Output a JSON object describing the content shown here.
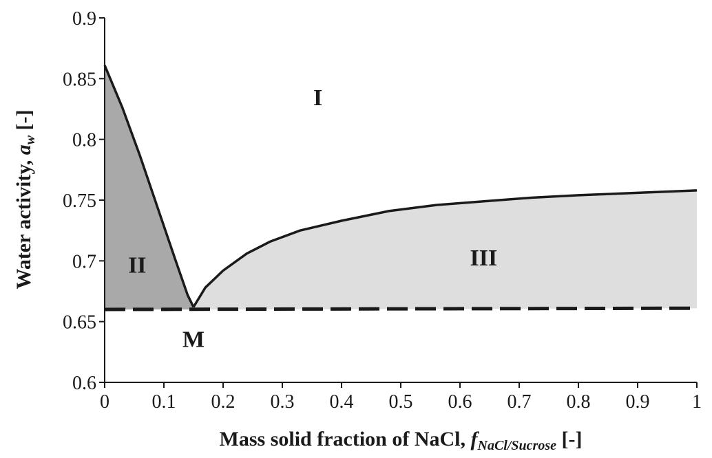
{
  "chart_data": {
    "type": "area",
    "xlabel": {
      "main": "Mass solid fraction of NaCl, ",
      "sym": "f",
      "sub": "NaCl/Sucrose",
      "unit": " [-]"
    },
    "ylabel": {
      "main": "Water activity, ",
      "sym": "a",
      "sub": "w",
      "unit": " [-]"
    },
    "xlim": [
      0,
      1
    ],
    "ylim": [
      0.6,
      0.9
    ],
    "x_ticks": [
      "0",
      "0.1",
      "0.2",
      "0.3",
      "0.4",
      "0.5",
      "0.6",
      "0.7",
      "0.8",
      "0.9",
      "1"
    ],
    "y_ticks": [
      "0.6",
      "0.65",
      "0.7",
      "0.75",
      "0.8",
      "0.85",
      "0.9"
    ],
    "grid": false,
    "series": [
      {
        "points": [
          [
            0,
            0.861
          ],
          [
            0.03,
            0.826
          ],
          [
            0.06,
            0.786
          ],
          [
            0.09,
            0.743
          ],
          [
            0.12,
            0.7
          ],
          [
            0.14,
            0.672
          ],
          [
            0.15,
            0.662
          ]
        ]
      },
      {
        "points": [
          [
            0.15,
            0.662
          ],
          [
            0.17,
            0.678
          ],
          [
            0.2,
            0.692
          ],
          [
            0.24,
            0.706
          ],
          [
            0.28,
            0.716
          ],
          [
            0.33,
            0.725
          ],
          [
            0.4,
            0.733
          ],
          [
            0.48,
            0.741
          ],
          [
            0.56,
            0.746
          ],
          [
            0.64,
            0.749
          ],
          [
            0.72,
            0.752
          ],
          [
            0.8,
            0.754
          ],
          [
            0.9,
            0.756
          ],
          [
            1.0,
            0.758
          ]
        ]
      },
      {
        "style": "dashed",
        "points": [
          [
            0,
            0.66
          ],
          [
            1.0,
            0.661
          ]
        ]
      }
    ],
    "regions": [
      {
        "label": "I",
        "x": 0.36,
        "y": 0.835
      },
      {
        "label": "II",
        "x": 0.055,
        "y": 0.697
      },
      {
        "label": "III",
        "x": 0.64,
        "y": 0.703
      },
      {
        "label": "M",
        "x": 0.15,
        "y": 0.636
      }
    ],
    "colors": {
      "region_II": "#a9a9a9",
      "region_III": "#dedede",
      "line": "#1a1a1a"
    }
  }
}
